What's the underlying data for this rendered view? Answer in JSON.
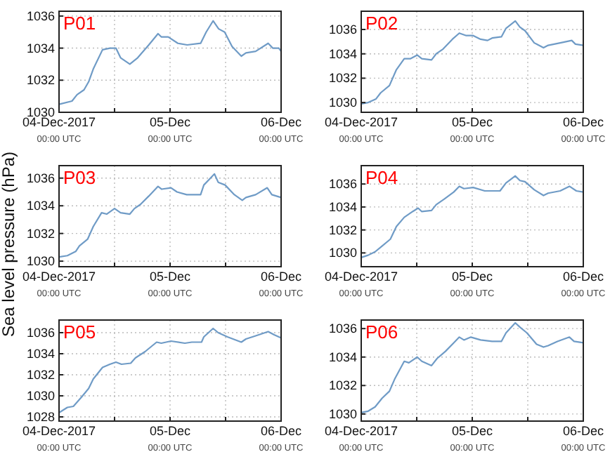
{
  "chart_data": [
    {
      "type": "line",
      "title": "P01",
      "xlim": [
        "2017-12-04T00:00",
        "2017-12-06T00:00"
      ],
      "xticks": [
        {
          "value": "2017-12-04T00:00",
          "label": "04-Dec-2017\n00:00 UTC"
        },
        {
          "value": "2017-12-04T12:00",
          "label": null
        },
        {
          "value": "2017-12-05T00:00",
          "label": "05-Dec\n00:00 UTC"
        },
        {
          "value": "2017-12-05T12:00",
          "label": null
        },
        {
          "value": "2017-12-06T00:00",
          "label": "06-Dec\n00:00 UTC"
        }
      ],
      "ylim": [
        1030,
        1036.3
      ],
      "yticks": [
        1030,
        1032,
        1034,
        1036
      ],
      "grid": true,
      "series": [
        {
          "color": "#6f9bc6",
          "x": [
            "2017-12-04T00:00",
            "2017-12-04T02:48",
            "2017-12-04T03:54",
            "2017-12-04T05:24",
            "2017-12-04T06:24",
            "2017-12-04T07:24",
            "2017-12-04T09:24",
            "2017-12-04T11:00",
            "2017-12-04T12:18",
            "2017-12-04T13:18",
            "2017-12-04T15:18",
            "2017-12-04T17:00",
            "2017-12-04T19:24",
            "2017-12-04T21:24",
            "2017-12-04T22:06",
            "2017-12-04T23:36",
            "2017-12-05T01:42",
            "2017-12-05T03:42",
            "2017-12-05T06:36",
            "2017-12-05T07:48",
            "2017-12-05T09:18",
            "2017-12-05T10:30",
            "2017-12-05T11:48",
            "2017-12-05T13:24",
            "2017-12-05T15:24",
            "2017-12-05T16:24",
            "2017-12-05T18:30",
            "2017-12-05T21:12",
            "2017-12-05T22:12",
            "2017-12-05T23:30",
            "2017-12-06T00:00"
          ],
          "values": [
            1030.5,
            1030.7,
            1031.1,
            1031.4,
            1031.9,
            1032.7,
            1033.9,
            1034.0,
            1034.0,
            1033.4,
            1033.0,
            1033.4,
            1034.2,
            1034.9,
            1034.7,
            1034.7,
            1034.3,
            1034.2,
            1034.3,
            1035.0,
            1035.7,
            1035.2,
            1035.0,
            1034.1,
            1033.5,
            1033.7,
            1033.8,
            1034.3,
            1034.0,
            1034.0,
            1033.8
          ]
        }
      ]
    },
    {
      "type": "line",
      "title": "P02",
      "xlim": [
        "2017-12-04T00:00",
        "2017-12-06T00:00"
      ],
      "xticks": [
        {
          "value": "2017-12-04T00:00",
          "label": "04-Dec-2017\n00:00 UTC"
        },
        {
          "value": "2017-12-04T12:00",
          "label": null
        },
        {
          "value": "2017-12-05T00:00",
          "label": "05-Dec\n00:00 UTC"
        },
        {
          "value": "2017-12-05T12:00",
          "label": null
        },
        {
          "value": "2017-12-06T00:00",
          "label": "06-Dec\n00:00 UTC"
        }
      ],
      "ylim": [
        1029.2,
        1037.5
      ],
      "yticks": [
        1030,
        1032,
        1034,
        1036
      ],
      "grid": true,
      "series": [
        {
          "color": "#6f9bc6",
          "x": [
            "2017-12-04T00:00",
            "2017-12-04T01:30",
            "2017-12-04T03:12",
            "2017-12-04T04:12",
            "2017-12-04T06:06",
            "2017-12-04T07:36",
            "2017-12-04T09:18",
            "2017-12-04T10:36",
            "2017-12-04T12:06",
            "2017-12-04T13:06",
            "2017-12-04T15:12",
            "2017-12-04T16:12",
            "2017-12-04T17:42",
            "2017-12-04T19:42",
            "2017-12-04T21:12",
            "2017-12-04T22:42",
            "2017-12-05T00:12",
            "2017-12-05T01:48",
            "2017-12-05T03:18",
            "2017-12-05T04:18",
            "2017-12-05T06:18",
            "2017-12-05T07:18",
            "2017-12-05T09:18",
            "2017-12-05T10:18",
            "2017-12-05T11:24",
            "2017-12-05T13:24",
            "2017-12-05T15:24",
            "2017-12-05T16:24",
            "2017-12-05T19:00",
            "2017-12-05T21:30",
            "2017-12-05T22:18",
            "2017-12-06T00:00"
          ],
          "values": [
            1029.9,
            1030.0,
            1030.3,
            1030.8,
            1031.4,
            1032.7,
            1033.6,
            1033.6,
            1033.9,
            1033.6,
            1033.5,
            1034.0,
            1034.4,
            1035.2,
            1035.7,
            1035.5,
            1035.5,
            1035.2,
            1035.1,
            1035.3,
            1035.4,
            1036.1,
            1036.7,
            1036.2,
            1035.9,
            1034.9,
            1034.5,
            1034.7,
            1034.9,
            1035.1,
            1034.8,
            1034.7
          ]
        }
      ]
    },
    {
      "type": "line",
      "title": "P03",
      "ylabel": "Sea level pressure (hPa)",
      "xlim": [
        "2017-12-04T00:00",
        "2017-12-06T00:00"
      ],
      "xticks": [
        {
          "value": "2017-12-04T00:00",
          "label": "04-Dec-2017\n00:00 UTC"
        },
        {
          "value": "2017-12-04T12:00",
          "label": null
        },
        {
          "value": "2017-12-05T00:00",
          "label": "05-Dec\n00:00 UTC"
        },
        {
          "value": "2017-12-05T12:00",
          "label": null
        },
        {
          "value": "2017-12-06T00:00",
          "label": "06-Dec\n00:00 UTC"
        }
      ],
      "ylim": [
        1029.6,
        1036.9
      ],
      "yticks": [
        1030,
        1032,
        1034,
        1036
      ],
      "grid": true,
      "series": [
        {
          "color": "#6f9bc6",
          "x": [
            "2017-12-04T00:00",
            "2017-12-04T01:48",
            "2017-12-04T03:36",
            "2017-12-04T04:24",
            "2017-12-04T06:12",
            "2017-12-04T07:24",
            "2017-12-04T09:12",
            "2017-12-04T10:18",
            "2017-12-04T12:00",
            "2017-12-04T13:18",
            "2017-12-04T15:18",
            "2017-12-04T16:18",
            "2017-12-04T17:36",
            "2017-12-04T19:24",
            "2017-12-04T21:24",
            "2017-12-04T22:12",
            "2017-12-05T00:12",
            "2017-12-05T01:30",
            "2017-12-05T03:36",
            "2017-12-05T06:36",
            "2017-12-05T07:18",
            "2017-12-05T09:36",
            "2017-12-05T10:24",
            "2017-12-05T11:54",
            "2017-12-05T13:54",
            "2017-12-05T15:36",
            "2017-12-05T16:24",
            "2017-12-05T18:30",
            "2017-12-05T21:00",
            "2017-12-05T22:00",
            "2017-12-06T00:00"
          ],
          "values": [
            1030.3,
            1030.4,
            1030.7,
            1031.1,
            1031.6,
            1032.5,
            1033.5,
            1033.4,
            1033.8,
            1033.5,
            1033.4,
            1033.8,
            1034.1,
            1034.7,
            1035.4,
            1035.2,
            1035.3,
            1035.0,
            1034.8,
            1034.8,
            1035.5,
            1036.3,
            1035.7,
            1035.5,
            1034.8,
            1034.4,
            1034.6,
            1034.8,
            1035.3,
            1034.8,
            1034.6
          ]
        }
      ]
    },
    {
      "type": "line",
      "title": "P04",
      "xlim": [
        "2017-12-04T00:00",
        "2017-12-06T00:00"
      ],
      "xticks": [
        {
          "value": "2017-12-04T00:00",
          "label": "04-Dec-2017\n00:00 UTC"
        },
        {
          "value": "2017-12-04T12:00",
          "label": null
        },
        {
          "value": "2017-12-05T00:00",
          "label": "05-Dec\n00:00 UTC"
        },
        {
          "value": "2017-12-05T12:00",
          "label": null
        },
        {
          "value": "2017-12-06T00:00",
          "label": "06-Dec\n00:00 UTC"
        }
      ],
      "ylim": [
        1028.8,
        1037.6
      ],
      "yticks": [
        1030,
        1032,
        1034,
        1036
      ],
      "grid": true,
      "series": [
        {
          "color": "#6f9bc6",
          "x": [
            "2017-12-04T00:00",
            "2017-12-04T01:30",
            "2017-12-04T03:00",
            "2017-12-04T04:30",
            "2017-12-04T06:18",
            "2017-12-04T07:36",
            "2017-12-04T09:18",
            "2017-12-04T11:06",
            "2017-12-04T12:18",
            "2017-12-04T13:06",
            "2017-12-04T15:12",
            "2017-12-04T16:12",
            "2017-12-04T18:00",
            "2017-12-04T20:00",
            "2017-12-04T21:12",
            "2017-12-04T22:12",
            "2017-12-05T00:12",
            "2017-12-05T02:42",
            "2017-12-05T06:00",
            "2017-12-05T07:18",
            "2017-12-05T09:18",
            "2017-12-05T10:18",
            "2017-12-05T11:24",
            "2017-12-05T13:24",
            "2017-12-05T15:24",
            "2017-12-05T16:24",
            "2017-12-05T19:00",
            "2017-12-05T21:00",
            "2017-12-05T22:30",
            "2017-12-06T00:00"
          ],
          "values": [
            1029.6,
            1029.8,
            1030.1,
            1030.6,
            1031.2,
            1032.3,
            1033.1,
            1033.6,
            1033.9,
            1033.6,
            1033.7,
            1034.2,
            1034.7,
            1035.3,
            1035.8,
            1035.6,
            1035.7,
            1035.4,
            1035.4,
            1036.1,
            1036.7,
            1036.3,
            1036.2,
            1035.5,
            1035.0,
            1035.2,
            1035.4,
            1035.8,
            1035.4,
            1035.3
          ]
        }
      ]
    },
    {
      "type": "line",
      "title": "P05",
      "xlim": [
        "2017-12-04T00:00",
        "2017-12-06T00:00"
      ],
      "xticks": [
        {
          "value": "2017-12-04T00:00",
          "label": "04-Dec-2017\n00:00 UTC"
        },
        {
          "value": "2017-12-04T12:00",
          "label": null
        },
        {
          "value": "2017-12-05T00:00",
          "label": "05-Dec\n00:00 UTC"
        },
        {
          "value": "2017-12-05T12:00",
          "label": null
        },
        {
          "value": "2017-12-06T00:00",
          "label": "06-Dec\n00:00 UTC"
        }
      ],
      "ylim": [
        1027.6,
        1037.2
      ],
      "yticks": [
        1028,
        1030,
        1032,
        1034,
        1036
      ],
      "grid": true,
      "series": [
        {
          "color": "#6f9bc6",
          "x": [
            "2017-12-04T00:00",
            "2017-12-04T01:48",
            "2017-12-04T03:06",
            "2017-12-04T04:54",
            "2017-12-04T06:24",
            "2017-12-04T07:24",
            "2017-12-04T09:24",
            "2017-12-04T11:00",
            "2017-12-04T12:18",
            "2017-12-04T13:30",
            "2017-12-04T15:30",
            "2017-12-04T16:30",
            "2017-12-04T18:36",
            "2017-12-04T21:06",
            "2017-12-04T22:06",
            "2017-12-05T00:12",
            "2017-12-05T03:12",
            "2017-12-05T04:42",
            "2017-12-05T06:48",
            "2017-12-05T07:18",
            "2017-12-05T09:18",
            "2017-12-05T10:24",
            "2017-12-05T12:24",
            "2017-12-05T15:24",
            "2017-12-05T16:24",
            "2017-12-05T18:30",
            "2017-12-05T21:12",
            "2017-12-05T22:30",
            "2017-12-06T00:00"
          ],
          "values": [
            1028.4,
            1028.9,
            1029.0,
            1029.9,
            1030.7,
            1031.6,
            1032.7,
            1033.0,
            1033.2,
            1033.0,
            1033.1,
            1033.6,
            1034.2,
            1035.1,
            1035.0,
            1035.2,
            1035.0,
            1035.1,
            1035.1,
            1035.6,
            1036.4,
            1036.0,
            1035.6,
            1035.1,
            1035.4,
            1035.7,
            1036.1,
            1035.8,
            1035.5
          ]
        }
      ]
    },
    {
      "type": "line",
      "title": "P06",
      "xlim": [
        "2017-12-04T00:00",
        "2017-12-06T00:00"
      ],
      "xticks": [
        {
          "value": "2017-12-04T00:00",
          "label": "04-Dec-2017\n00:00 UTC"
        },
        {
          "value": "2017-12-04T12:00",
          "label": null
        },
        {
          "value": "2017-12-05T00:00",
          "label": "05-Dec\n00:00 UTC"
        },
        {
          "value": "2017-12-05T12:00",
          "label": null
        },
        {
          "value": "2017-12-06T00:00",
          "label": "06-Dec\n00:00 UTC"
        }
      ],
      "ylim": [
        1029.5,
        1036.6
      ],
      "yticks": [
        1030,
        1032,
        1034,
        1036
      ],
      "grid": true,
      "series": [
        {
          "color": "#6f9bc6",
          "x": [
            "2017-12-04T00:00",
            "2017-12-04T01:30",
            "2017-12-04T03:00",
            "2017-12-04T04:30",
            "2017-12-04T06:06",
            "2017-12-04T07:18",
            "2017-12-04T09:18",
            "2017-12-04T10:18",
            "2017-12-04T12:06",
            "2017-12-04T13:06",
            "2017-12-04T15:12",
            "2017-12-04T16:24",
            "2017-12-04T18:12",
            "2017-12-04T20:00",
            "2017-12-04T21:12",
            "2017-12-04T22:12",
            "2017-12-04T23:42",
            "2017-12-05T01:48",
            "2017-12-05T04:18",
            "2017-12-05T06:18",
            "2017-12-05T07:18",
            "2017-12-05T09:18",
            "2017-12-05T10:18",
            "2017-12-05T11:48",
            "2017-12-05T13:54",
            "2017-12-05T15:24",
            "2017-12-05T16:24",
            "2017-12-05T18:24",
            "2017-12-05T21:00",
            "2017-12-05T22:00",
            "2017-12-06T00:00"
          ],
          "values": [
            1030.1,
            1030.2,
            1030.5,
            1031.1,
            1031.6,
            1032.5,
            1033.7,
            1033.6,
            1034.0,
            1033.7,
            1033.4,
            1033.9,
            1034.4,
            1035.0,
            1035.4,
            1035.2,
            1035.4,
            1035.2,
            1035.1,
            1035.1,
            1035.7,
            1036.4,
            1036.1,
            1035.7,
            1034.9,
            1034.7,
            1034.8,
            1035.1,
            1035.4,
            1035.1,
            1035.0
          ]
        }
      ]
    }
  ]
}
